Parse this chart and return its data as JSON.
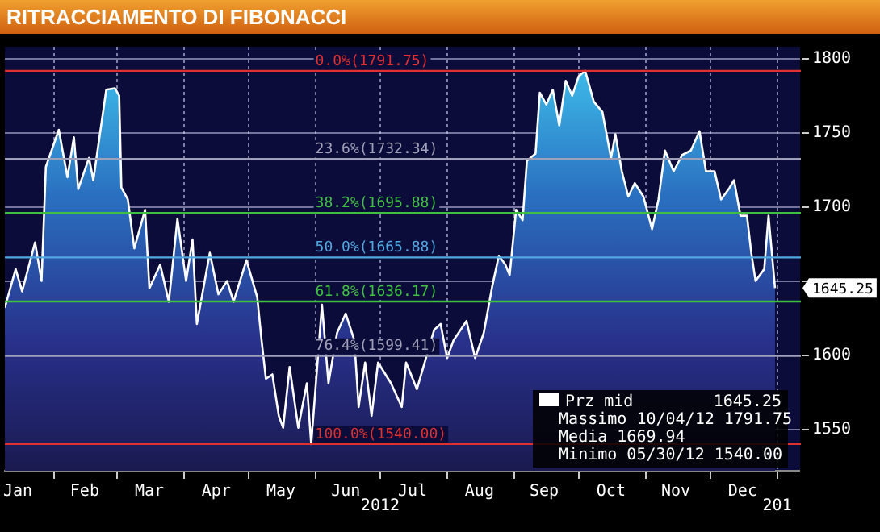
{
  "chart_data": {
    "type": "area",
    "title": "RITRACCIAMENTO DI FIBONACCI",
    "series": [
      {
        "name": "Prz mid",
        "color": "#ffffff",
        "x": [
          "2012-01-09",
          "2012-01-14",
          "2012-01-17",
          "2012-01-23",
          "2012-01-26",
          "2012-01-28",
          "2012-02-03",
          "2012-02-07",
          "2012-02-10",
          "2012-02-12",
          "2012-02-17",
          "2012-02-19",
          "2012-02-25",
          "2012-02-29",
          "2012-03-02",
          "2012-03-03",
          "2012-03-06",
          "2012-03-09",
          "2012-03-14",
          "2012-03-16",
          "2012-03-21",
          "2012-03-25",
          "2012-03-29",
          "2012-04-02",
          "2012-04-05",
          "2012-04-07",
          "2012-04-13",
          "2012-04-17",
          "2012-04-21",
          "2012-04-24",
          "2012-04-30",
          "2012-05-05",
          "2012-05-07",
          "2012-05-09",
          "2012-05-12",
          "2012-05-15",
          "2012-05-17",
          "2012-05-20",
          "2012-05-24",
          "2012-05-28",
          "2012-05-30",
          "2012-06-04",
          "2012-06-07",
          "2012-06-11",
          "2012-06-15",
          "2012-06-19",
          "2012-06-21",
          "2012-06-24",
          "2012-06-27",
          "2012-06-30",
          "2012-07-06",
          "2012-07-11",
          "2012-07-13",
          "2012-07-18",
          "2012-07-26",
          "2012-07-29",
          "2012-08-01",
          "2012-08-04",
          "2012-08-10",
          "2012-08-14",
          "2012-08-18",
          "2012-08-22",
          "2012-08-25",
          "2012-08-28",
          "2012-08-30",
          "2012-09-02",
          "2012-09-05",
          "2012-09-07",
          "2012-09-11",
          "2012-09-13",
          "2012-09-16",
          "2012-09-19",
          "2012-09-22",
          "2012-09-25",
          "2012-09-28",
          "2012-10-01",
          "2012-10-04",
          "2012-10-08",
          "2012-10-12",
          "2012-10-16",
          "2012-10-18",
          "2012-10-21",
          "2012-10-24",
          "2012-10-27",
          "2012-10-31",
          "2012-11-04",
          "2012-11-07",
          "2012-11-10",
          "2012-11-14",
          "2012-11-18",
          "2012-11-22",
          "2012-11-26",
          "2012-11-29",
          "2012-12-03",
          "2012-12-06",
          "2012-12-10",
          "2012-12-12",
          "2012-12-15",
          "2012-12-18",
          "2012-12-20",
          "2012-12-22",
          "2012-12-26",
          "2012-12-28",
          "2012-12-31"
        ],
        "values": [
          1632,
          1658,
          1643,
          1676,
          1650,
          1727,
          1752,
          1720,
          1747,
          1712,
          1733,
          1718,
          1779,
          1780,
          1775,
          1713,
          1705,
          1672,
          1698,
          1645,
          1661,
          1636,
          1692,
          1650,
          1678,
          1621,
          1669,
          1641,
          1650,
          1636,
          1664,
          1639,
          1610,
          1584,
          1587,
          1559,
          1551,
          1592,
          1551,
          1581,
          1540,
          1634,
          1581,
          1615,
          1628,
          1610,
          1565,
          1595,
          1559,
          1595,
          1581,
          1565,
          1595,
          1577,
          1617,
          1621,
          1598,
          1610,
          1623,
          1598,
          1615,
          1647,
          1667,
          1661,
          1654,
          1698,
          1691,
          1731,
          1736,
          1777,
          1769,
          1779,
          1755,
          1785,
          1775,
          1788,
          1791.75,
          1771,
          1764,
          1733,
          1749,
          1724,
          1707,
          1716,
          1707,
          1685,
          1705,
          1738,
          1724,
          1735,
          1738,
          1751,
          1724,
          1724,
          1705,
          1713,
          1718,
          1694,
          1694,
          1669,
          1650,
          1658,
          1694,
          1645.25
        ]
      }
    ],
    "xlim": [
      "2012-01-09",
      "2013-01-12"
    ],
    "xticks": [
      {
        "value": "2012-01-15",
        "label": "Jan"
      },
      {
        "value": "2012-02-01",
        "label": null
      },
      {
        "value": "2012-02-15",
        "label": "Feb"
      },
      {
        "value": "2012-03-01",
        "label": null
      },
      {
        "value": "2012-03-16",
        "label": "Mar"
      },
      {
        "value": "2012-04-01",
        "label": null
      },
      {
        "value": "2012-04-16",
        "label": "Apr"
      },
      {
        "value": "2012-05-01",
        "label": null
      },
      {
        "value": "2012-05-16",
        "label": "May"
      },
      {
        "value": "2012-06-01",
        "label": null
      },
      {
        "value": "2012-06-15",
        "label": "Jun"
      },
      {
        "value": "2012-07-01",
        "label": null
      },
      {
        "value": "2012-07-16",
        "label": "Jul"
      },
      {
        "value": "2012-08-01",
        "label": null
      },
      {
        "value": "2012-08-16",
        "label": "Aug"
      },
      {
        "value": "2012-09-01",
        "label": null
      },
      {
        "value": "2012-09-15",
        "label": "Sep"
      },
      {
        "value": "2012-10-01",
        "label": null
      },
      {
        "value": "2012-10-16",
        "label": "Oct"
      },
      {
        "value": "2012-11-01",
        "label": null
      },
      {
        "value": "2012-11-15",
        "label": "Nov"
      },
      {
        "value": "2012-12-01",
        "label": null
      },
      {
        "value": "2012-12-16",
        "label": "Dec"
      },
      {
        "value": "2013-01-01",
        "label": null
      }
    ],
    "ylim": [
      1522,
      1808
    ],
    "yticks": [
      1550,
      1600,
      {
        "value": 1650,
        "label": null
      },
      1700,
      1750,
      1800
    ],
    "grid": true,
    "legend": "bottom right",
    "ref_lines": [
      {
        "axis": "y",
        "value": 1791.75,
        "label": "0.0%(1791.75)",
        "color": "#e03030"
      },
      {
        "axis": "y",
        "value": 1732.34,
        "label": "23.6%(1732.34)",
        "color": "#a0a0b8"
      },
      {
        "axis": "y",
        "value": 1695.88,
        "label": "38.2%(1695.88)",
        "color": "#40c040"
      },
      {
        "axis": "y",
        "value": 1665.88,
        "label": "50.0%(1665.88)",
        "color": "#50a8e0"
      },
      {
        "axis": "y",
        "value": 1636.17,
        "label": "61.8%(1636.17)",
        "color": "#40c040"
      },
      {
        "axis": "y",
        "value": 1599.41,
        "label": "76.4%(1599.41)",
        "color": "#a0a0b8"
      },
      {
        "axis": "y",
        "value": 1540.0,
        "label": "100.0%(1540.00)",
        "color": "#e03030"
      }
    ],
    "annotations": [
      "1645.25",
      "1645.25",
      "Massimo 10/04/12 1791.75",
      "Media 1669.94",
      "Minimo 05/30/12 1540.00",
      "2012",
      "201"
    ]
  }
}
